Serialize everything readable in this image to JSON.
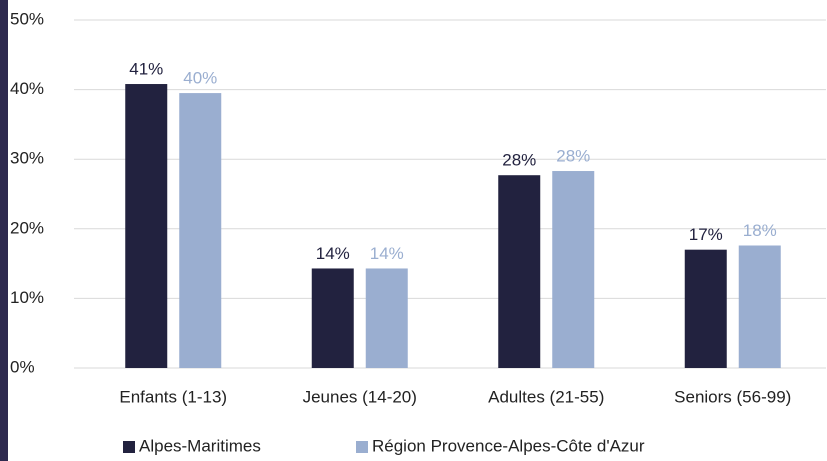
{
  "chart_data": {
    "type": "bar",
    "categories": [
      "Enfants (1-13)",
      "Jeunes (14-20)",
      "Adultes (21-55)",
      "Seniors (56-99)"
    ],
    "series": [
      {
        "name": "Alpes-Maritimes",
        "color": "#22223f",
        "values": [
          40.8,
          14.3,
          27.7,
          17.0
        ],
        "value_labels": [
          "41%",
          "14%",
          "28%",
          "17%"
        ]
      },
      {
        "name": "Région Provence-Alpes-Côte d'Azur",
        "color": "#9aaed0",
        "values": [
          39.5,
          14.3,
          28.3,
          17.6
        ],
        "value_labels": [
          "40%",
          "14%",
          "28%",
          "18%"
        ]
      }
    ],
    "ylim": [
      0,
      50
    ],
    "yticks": [
      {
        "value": 0,
        "label": "0%"
      },
      {
        "value": 10,
        "label": "10%"
      },
      {
        "value": 20,
        "label": "20%"
      },
      {
        "value": 30,
        "label": "30%"
      },
      {
        "value": 40,
        "label": "40%"
      },
      {
        "value": 50,
        "label": "50%"
      }
    ],
    "grid": true,
    "legend": "bottom"
  }
}
